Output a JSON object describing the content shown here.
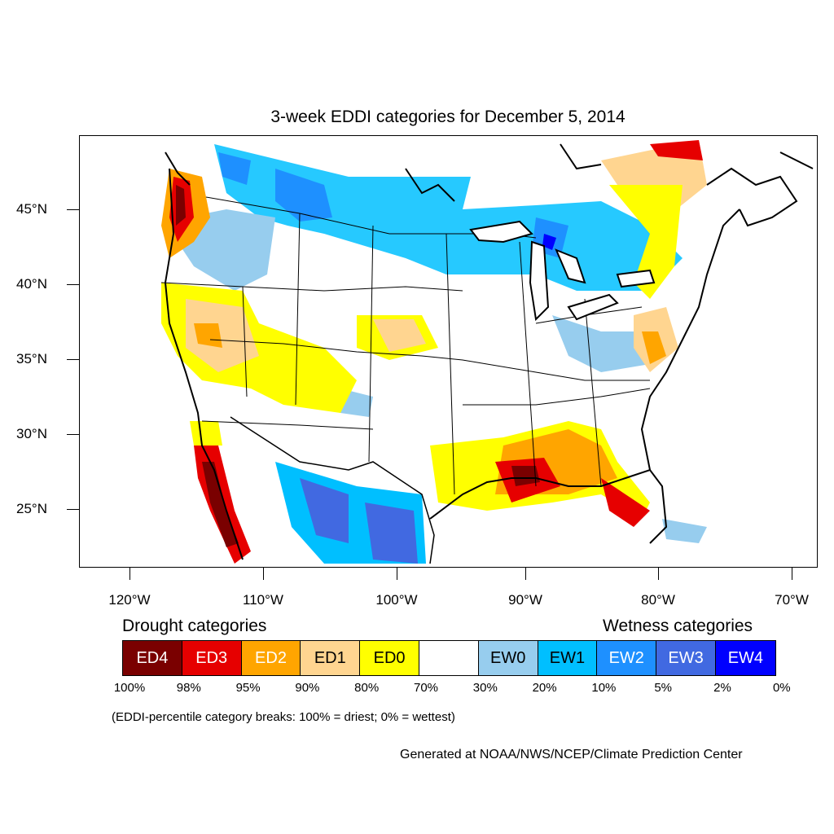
{
  "title": "3-week EDDI categories for December 5, 2014",
  "axes": {
    "y_labels": [
      "45°N",
      "40°N",
      "35°N",
      "30°N",
      "25°N"
    ],
    "x_labels": [
      "120°W",
      "110°W",
      "100°W",
      "90°W",
      "80°W",
      "70°W"
    ]
  },
  "legend": {
    "drought_heading": "Drought categories",
    "wetness_heading": "Wetness categories",
    "categories": [
      {
        "label": "ED4",
        "color": "#7a0000",
        "text_color": "#ffffff"
      },
      {
        "label": "ED3",
        "color": "#e60000",
        "text_color": "#ffffff"
      },
      {
        "label": "ED2",
        "color": "#ffa500",
        "text_color": "#ffffff"
      },
      {
        "label": "ED1",
        "color": "#ffd590",
        "text_color": "#000000"
      },
      {
        "label": "ED0",
        "color": "#ffff00",
        "text_color": "#000000"
      },
      {
        "label": "",
        "color": "#ffffff",
        "text_color": "#000000"
      },
      {
        "label": "EW0",
        "color": "#97cdee",
        "text_color": "#000000"
      },
      {
        "label": "EW1",
        "color": "#00bfff",
        "text_color": "#000000"
      },
      {
        "label": "EW2",
        "color": "#1e90ff",
        "text_color": "#ffffff"
      },
      {
        "label": "EW3",
        "color": "#4169e1",
        "text_color": "#ffffff"
      },
      {
        "label": "EW4",
        "color": "#0000ff",
        "text_color": "#ffffff"
      }
    ],
    "percent_breaks": [
      "100%",
      "98%",
      "95%",
      "90%",
      "80%",
      "70%",
      "30%",
      "20%",
      "10%",
      "5%",
      "2%",
      "0%"
    ]
  },
  "note": "(EDDI-percentile category breaks: 100% = driest; 0% = wettest)",
  "credit": "Generated at NOAA/NWS/NCEP/Climate Prediction Center"
}
